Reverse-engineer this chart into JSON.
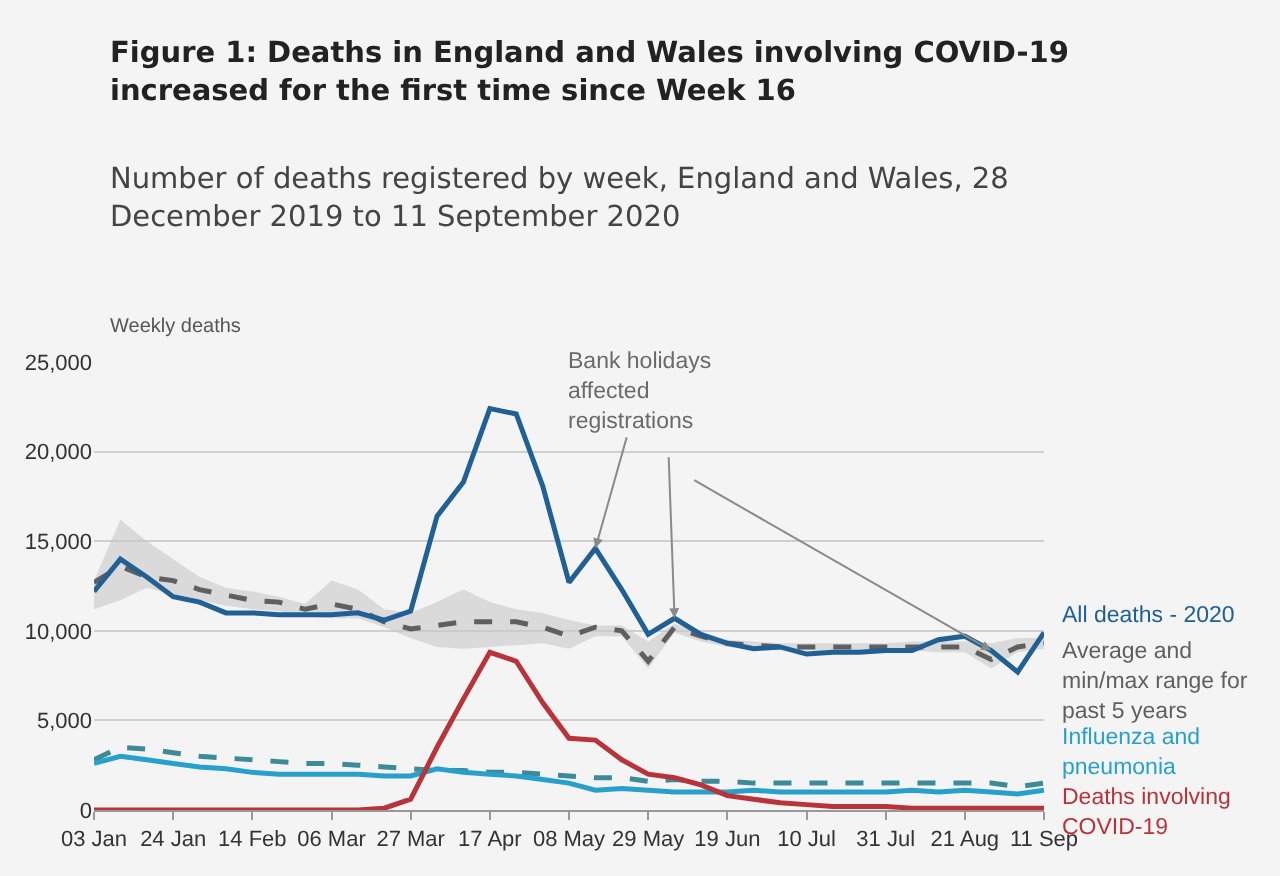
{
  "chart_data": {
    "type": "line",
    "title": "Figure 1: Deaths in England and Wales involving COVID-19 increased for the first time since Week 16",
    "subtitle": "Number of deaths registered by week, England and Wales, 28 December 2019 to 11 September 2020",
    "ylabel": "Weekly deaths",
    "x": [
      "2020-01-03",
      "2020-01-10",
      "2020-01-17",
      "2020-01-24",
      "2020-01-31",
      "2020-02-07",
      "2020-02-14",
      "2020-02-21",
      "2020-02-28",
      "2020-03-06",
      "2020-03-13",
      "2020-03-20",
      "2020-03-27",
      "2020-04-03",
      "2020-04-10",
      "2020-04-17",
      "2020-04-24",
      "2020-05-01",
      "2020-05-08",
      "2020-05-15",
      "2020-05-22",
      "2020-05-29",
      "2020-06-05",
      "2020-06-12",
      "2020-06-19",
      "2020-06-26",
      "2020-07-03",
      "2020-07-10",
      "2020-07-17",
      "2020-07-24",
      "2020-07-31",
      "2020-08-07",
      "2020-08-14",
      "2020-08-21",
      "2020-08-28",
      "2020-09-04",
      "2020-09-11"
    ],
    "series": [
      {
        "name": "Average and min/max range for past 5 years",
        "color": "#5f5f5f",
        "line_style": "dashed",
        "values": [
          12700,
          13600,
          13000,
          12800,
          12300,
          12000,
          11700,
          11600,
          11200,
          11500,
          11200,
          10500,
          10100,
          10300,
          10500,
          10500,
          10500,
          10200,
          9700,
          10200,
          10000,
          8300,
          10200,
          9700,
          9300,
          9200,
          9100,
          9100,
          9100,
          9100,
          9100,
          9100,
          9100,
          9100,
          8400,
          9100,
          9300
        ],
        "lower": [
          11200,
          11700,
          12400,
          12000,
          11700,
          11400,
          11200,
          11100,
          10800,
          10700,
          10700,
          10200,
          9600,
          9100,
          9000,
          9100,
          9200,
          9300,
          9000,
          9700,
          9700,
          7900,
          9900,
          9400,
          9100,
          9000,
          8900,
          8900,
          8900,
          8900,
          8900,
          8900,
          8800,
          8800,
          7900,
          8800,
          9000
        ],
        "upper": [
          12800,
          16200,
          15000,
          14000,
          13000,
          12400,
          12200,
          11900,
          11500,
          12800,
          12300,
          11200,
          11000,
          11600,
          12300,
          11600,
          11200,
          11000,
          10600,
          10300,
          10300,
          9400,
          10400,
          9900,
          9500,
          9400,
          9300,
          9300,
          9300,
          9300,
          9300,
          9400,
          9400,
          9400,
          9300,
          9600,
          9600
        ]
      },
      {
        "name": "All deaths - 2020",
        "color": "#206095",
        "line_style": "solid",
        "values": [
          12200,
          14000,
          13000,
          11900,
          11600,
          11000,
          11000,
          10900,
          10900,
          10900,
          11000,
          10600,
          11100,
          16400,
          18300,
          22400,
          22100,
          18100,
          12700,
          14600,
          12300,
          9800,
          10700,
          9800,
          9300,
          9000,
          9100,
          8700,
          8800,
          8800,
          8900,
          8900,
          9500,
          9700,
          8900,
          7700,
          9900
        ]
      },
      {
        "color": "#3d8a98",
        "line_style": "dashed",
        "values": [
          2800,
          3500,
          3400,
          3200,
          3000,
          2900,
          2800,
          2700,
          2600,
          2600,
          2500,
          2400,
          2300,
          2200,
          2200,
          2100,
          2100,
          2000,
          1900,
          1800,
          1800,
          1600,
          1700,
          1600,
          1600,
          1500,
          1500,
          1500,
          1500,
          1500,
          1500,
          1500,
          1500,
          1500,
          1500,
          1300,
          1500
        ]
      },
      {
        "name": "Influenza and pneumonia",
        "color": "#27a0cc",
        "line_style": "solid",
        "values": [
          2600,
          3000,
          2800,
          2600,
          2400,
          2300,
          2100,
          2000,
          2000,
          2000,
          2000,
          1900,
          1900,
          2300,
          2100,
          2000,
          1900,
          1700,
          1500,
          1100,
          1200,
          1100,
          1000,
          1000,
          1000,
          1100,
          1000,
          1000,
          1000,
          1000,
          1000,
          1100,
          1000,
          1100,
          1000,
          900,
          1100
        ]
      },
      {
        "name": "Deaths involving COVID-19",
        "color": "#b8333a",
        "line_style": "solid",
        "values": [
          0,
          0,
          0,
          0,
          0,
          0,
          0,
          0,
          0,
          0,
          0,
          100,
          600,
          3500,
          6200,
          8800,
          8300,
          6000,
          4000,
          3900,
          2800,
          2000,
          1800,
          1400,
          800,
          600,
          400,
          300,
          200,
          200,
          200,
          100,
          100,
          100,
          100,
          100,
          100
        ]
      }
    ],
    "annotations": [
      {
        "text": "Bank holidays affected registrations",
        "x": "2020-05-15",
        "y": 14600
      }
    ],
    "xlim": [
      "2020-01-03",
      "2020-09-11"
    ],
    "xticks": [
      {
        "value": "2020-01-03",
        "label": "03 Jan"
      },
      {
        "value": "2020-01-24",
        "label": "24 Jan"
      },
      {
        "value": "2020-02-14",
        "label": "14 Feb"
      },
      {
        "value": "2020-03-06",
        "label": "06 Mar"
      },
      {
        "value": "2020-03-27",
        "label": "27 Mar"
      },
      {
        "value": "2020-04-17",
        "label": "17 Apr"
      },
      {
        "value": "2020-05-08",
        "label": "08 May"
      },
      {
        "value": "2020-05-29",
        "label": "29 May"
      },
      {
        "value": "2020-06-19",
        "label": "19 Jun"
      },
      {
        "value": "2020-07-10",
        "label": "10 Jul"
      },
      {
        "value": "2020-07-31",
        "label": "31 Jul"
      },
      {
        "value": "2020-08-21",
        "label": "21 Aug"
      },
      {
        "value": "2020-09-11",
        "label": "11 Sep"
      }
    ],
    "ylim": [
      0,
      25000
    ],
    "yticks": [
      {
        "value": 0,
        "label": "0"
      },
      {
        "value": 5000,
        "label": "5,000"
      },
      {
        "value": 10000,
        "label": "10,000"
      },
      {
        "value": 15000,
        "label": "15,000"
      },
      {
        "value": 20000,
        "label": "20,000"
      },
      {
        "value": 25000,
        "label": "25,000"
      }
    ],
    "grid": "y",
    "legend": false,
    "marker": "none"
  }
}
